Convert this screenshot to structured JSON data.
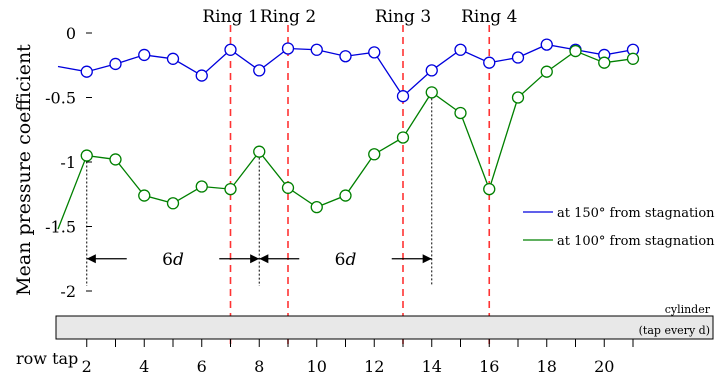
{
  "chart_data": {
    "type": "line",
    "ylabel": "Mean pressure coefficient",
    "xlabel": "row tap",
    "xlim": [
      1,
      22
    ],
    "ylim": [
      -2,
      0
    ],
    "y_ticks": [
      0,
      -0.5,
      -1,
      -1.5,
      -2
    ],
    "y_tick_labels": [
      "0",
      "-0.5",
      "-1",
      "-1.5",
      "-2"
    ],
    "x_ticks": [
      2,
      4,
      6,
      8,
      10,
      12,
      14,
      16,
      18,
      20
    ],
    "x_tick_labels": [
      "2",
      "4",
      "6",
      "8",
      "10",
      "12",
      "14",
      "16",
      "18",
      "20"
    ],
    "rings": [
      {
        "label": "Ring 1",
        "x": 7
      },
      {
        "label": "Ring 2",
        "x": 9
      },
      {
        "label": "Ring 3",
        "x": 13
      },
      {
        "label": "Ring 4",
        "x": 16
      }
    ],
    "series": [
      {
        "name": "at 150° from stagnation",
        "color": "#0000dd",
        "line_start": {
          "x": 1,
          "y": -0.26
        },
        "x": [
          2,
          3,
          4,
          5,
          6,
          7,
          8,
          9,
          10,
          11,
          12,
          13,
          14,
          15,
          16,
          17,
          18,
          19,
          20,
          21
        ],
        "values": [
          -0.3,
          -0.24,
          -0.17,
          -0.2,
          -0.33,
          -0.13,
          -0.29,
          -0.12,
          -0.13,
          -0.18,
          -0.15,
          -0.49,
          -0.29,
          -0.13,
          -0.23,
          -0.19,
          -0.09,
          -0.13,
          -0.17,
          -0.13
        ]
      },
      {
        "name": "at 100° from stagnation",
        "color": "#008000",
        "line_start": {
          "x": 1,
          "y": -1.52
        },
        "x": [
          2,
          3,
          4,
          5,
          6,
          7,
          8,
          9,
          10,
          11,
          12,
          13,
          14,
          15,
          16,
          17,
          18,
          19,
          20,
          21
        ],
        "values": [
          -0.95,
          -0.98,
          -1.26,
          -1.32,
          -1.19,
          -1.21,
          -0.92,
          -1.2,
          -1.35,
          -1.26,
          -0.94,
          -0.81,
          -0.46,
          -0.62,
          -1.21,
          -0.5,
          -0.3,
          -0.14,
          -0.23,
          -0.2
        ]
      }
    ],
    "annotations": [
      {
        "label": "6d",
        "italic_part": "d",
        "number_part": "6",
        "from_x": 2,
        "to_x": 8,
        "y": -1.75
      },
      {
        "label": "6d",
        "italic_part": "d",
        "number_part": "6",
        "from_x": 8,
        "to_x": 14,
        "y": -1.75
      }
    ],
    "cylinder": {
      "label": "cylinder",
      "note": "(tap every d)"
    },
    "legend_position": "right"
  }
}
